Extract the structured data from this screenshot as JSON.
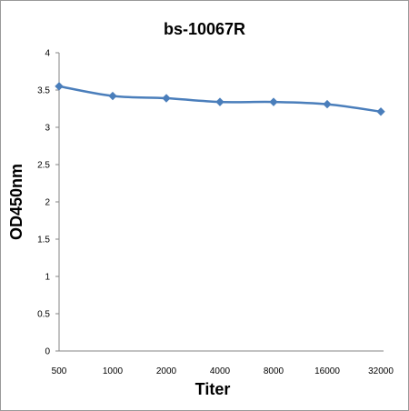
{
  "chart_data": {
    "type": "line",
    "title": "bs-10067R",
    "xlabel": "Titer",
    "ylabel": "OD450nm",
    "categories": [
      "500",
      "1000",
      "2000",
      "4000",
      "8000",
      "16000",
      "32000"
    ],
    "series": [
      {
        "values": [
          3.55,
          3.42,
          3.39,
          3.34,
          3.34,
          3.31,
          3.21
        ]
      }
    ],
    "ylim": [
      0,
      4
    ],
    "yticks": [
      "0",
      "0.5",
      "1",
      "1.5",
      "2",
      "2.5",
      "3",
      "3.5",
      "4"
    ],
    "grid": false,
    "legend": "none",
    "colors": {
      "line": "#4a7ebb",
      "axis": "#868686"
    }
  }
}
